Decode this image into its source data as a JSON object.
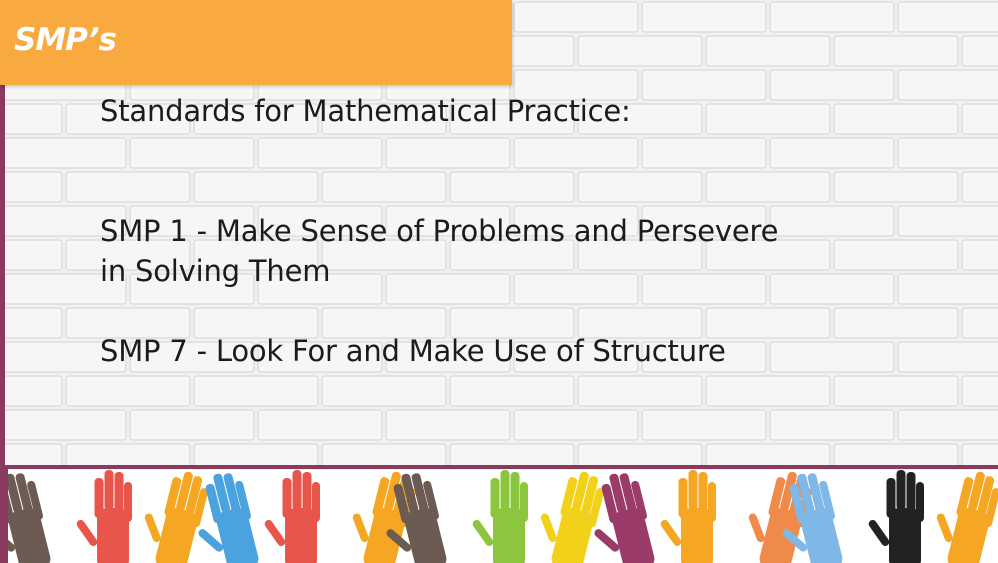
{
  "slide": {
    "title": "SMP’s",
    "heading": "Standards for Mathematical Practice:",
    "smp1": {
      "line1": "SMP 1 - Make Sense of Problems and Persevere",
      "line2": "in Solving Them"
    },
    "smp7": "SMP 7 - Look For and Make Use of Structure"
  },
  "colors": {
    "banner": "#f8a93f",
    "accent": "#8a3a5e",
    "text": "#1b1b1b",
    "background": "#f1f1f1"
  },
  "footer": {
    "image": "raised-hands-illustration",
    "hand_colors": [
      "#6b5b53",
      "#e8554a",
      "#f5a623",
      "#4aa3df",
      "#e8554a",
      "#f5a623",
      "#6b5b53",
      "#8cc63f",
      "#f2d11b",
      "#9a3b6a",
      "#f5a623",
      "#f08a4b",
      "#7fb8e6",
      "#222222",
      "#f5a623"
    ]
  }
}
